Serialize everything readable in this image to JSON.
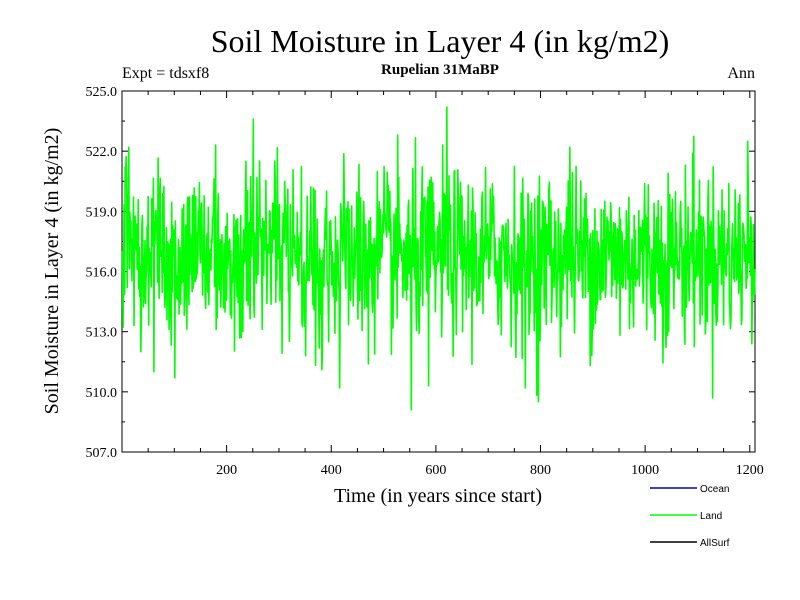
{
  "chart_data": {
    "type": "line",
    "title": "Soil Moisture in Layer 4 (in kg/m2)",
    "subtitle": "Rupelian  31MaBP",
    "expt_label": "Expt = tdsxf8",
    "season_label": "Ann",
    "xlabel": "Time (in years since start)",
    "ylabel": "Soil Moisture in Layer 4 (in kg/m2)",
    "xlim": [
      0,
      1210
    ],
    "ylim": [
      507.0,
      525.0
    ],
    "xticks": [
      200,
      400,
      600,
      800,
      1000,
      1200
    ],
    "yticks": [
      507.0,
      510.0,
      513.0,
      516.0,
      519.0,
      522.0,
      525.0
    ],
    "ytick_labels": [
      "507.0",
      "510.0",
      "513.0",
      "516.0",
      "519.0",
      "522.0",
      "525.0"
    ],
    "legend": [
      {
        "name": "Ocean",
        "color": "#0000cc"
      },
      {
        "name": "Land",
        "color": "#00ff00"
      },
      {
        "name": "AllSurf",
        "color": "#000000"
      }
    ],
    "series": [
      {
        "name": "Land",
        "color": "#00ff00",
        "n_points": 1210,
        "mean": 516.8,
        "std": 2.1,
        "seed": 31,
        "extremes": [
          {
            "x": 5,
            "y": 521.2
          },
          {
            "x": 12,
            "y": 522.2
          },
          {
            "x": 35,
            "y": 512.0
          },
          {
            "x": 60,
            "y": 511.0
          },
          {
            "x": 100,
            "y": 510.7
          },
          {
            "x": 250,
            "y": 523.6
          },
          {
            "x": 415,
            "y": 510.2
          },
          {
            "x": 470,
            "y": 511.4
          },
          {
            "x": 552,
            "y": 509.1
          },
          {
            "x": 585,
            "y": 510.3
          },
          {
            "x": 620,
            "y": 524.2
          },
          {
            "x": 770,
            "y": 510.2
          },
          {
            "x": 795,
            "y": 509.5
          },
          {
            "x": 855,
            "y": 522.2
          },
          {
            "x": 1090,
            "y": 521.9
          },
          {
            "x": 1195,
            "y": 522.5
          },
          {
            "x": 1203,
            "y": 512.4
          }
        ]
      }
    ]
  }
}
